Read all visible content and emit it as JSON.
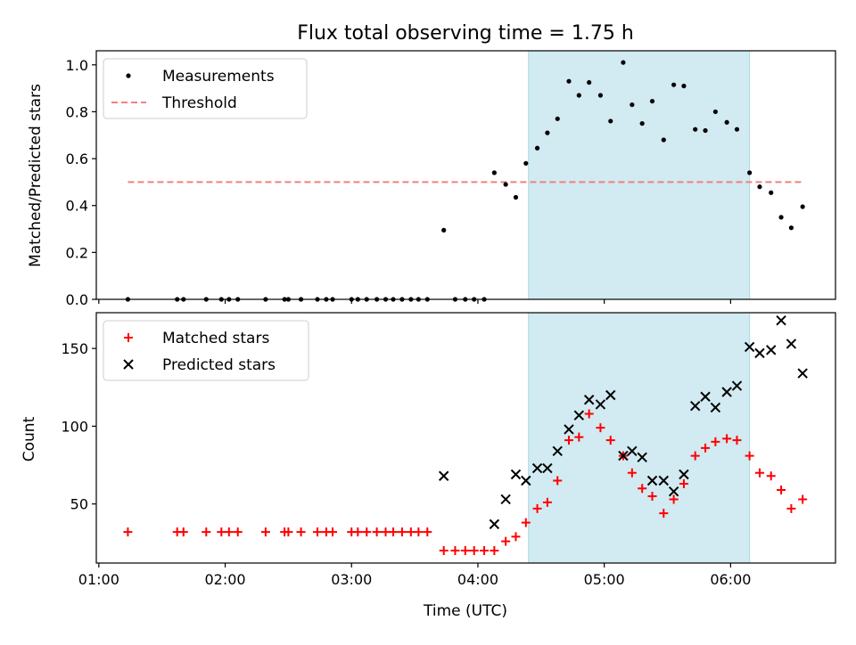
{
  "chart_data": [
    {
      "type": "scatter",
      "title": "Flux total observing time = 1.75 h",
      "xlabel": "",
      "ylabel": "Matched/Predicted stars",
      "xlim": [
        0.98,
        6.83
      ],
      "ylim": [
        0.0,
        1.06
      ],
      "x_ticks": [
        1,
        2,
        3,
        4,
        5,
        6
      ],
      "y_ticks": [
        0.0,
        0.2,
        0.4,
        0.6,
        0.8,
        1.0
      ],
      "y_tick_labels": [
        "0.0",
        "0.2",
        "0.4",
        "0.6",
        "0.8",
        "1.0"
      ],
      "shaded_x_range": [
        4.4,
        6.15
      ],
      "shade_color": "#add8e6",
      "threshold": {
        "name": "Threshold",
        "value": 0.5,
        "x_range": [
          1.23,
          6.57
        ],
        "color": "#f08080"
      },
      "legend": {
        "placement": "top-left",
        "entries": [
          "Measurements",
          "Threshold"
        ]
      },
      "series": [
        {
          "name": "Measurements",
          "marker": "dot",
          "color": "#000000",
          "x": [
            1.23,
            1.62,
            1.67,
            1.85,
            1.97,
            2.03,
            2.1,
            2.32,
            2.47,
            2.5,
            2.6,
            2.73,
            2.8,
            2.85,
            3.0,
            3.05,
            3.12,
            3.2,
            3.27,
            3.33,
            3.4,
            3.47,
            3.53,
            3.6,
            3.73,
            3.82,
            3.9,
            3.97,
            4.05,
            4.13,
            4.22,
            4.3,
            4.38,
            4.47,
            4.55,
            4.63,
            4.72,
            4.8,
            4.88,
            4.97,
            5.05,
            5.15,
            5.22,
            5.3,
            5.38,
            5.47,
            5.55,
            5.63,
            5.72,
            5.8,
            5.88,
            5.97,
            6.05,
            6.15,
            6.23,
            6.32,
            6.4,
            6.48,
            6.57
          ],
          "y": [
            0.0,
            0.0,
            0.0,
            0.0,
            0.0,
            0.0,
            0.0,
            0.0,
            0.0,
            0.0,
            0.0,
            0.0,
            0.0,
            0.0,
            0.0,
            0.0,
            0.0,
            0.0,
            0.0,
            0.0,
            0.0,
            0.0,
            0.0,
            0.0,
            0.295,
            0.0,
            0.0,
            0.0,
            0.0,
            0.54,
            0.49,
            0.435,
            0.58,
            0.645,
            0.71,
            0.77,
            0.93,
            0.87,
            0.925,
            0.87,
            0.76,
            1.01,
            0.83,
            0.75,
            0.845,
            0.68,
            0.915,
            0.91,
            0.725,
            0.72,
            0.8,
            0.755,
            0.725,
            0.54,
            0.48,
            0.455,
            0.35,
            0.305,
            0.395
          ]
        }
      ]
    },
    {
      "type": "scatter",
      "title": "",
      "xlabel": "Time (UTC)",
      "ylabel": "Count",
      "xlim": [
        0.98,
        6.83
      ],
      "ylim": [
        12,
        173
      ],
      "x_ticks": [
        1,
        2,
        3,
        4,
        5,
        6
      ],
      "x_tick_labels": [
        "01:00",
        "02:00",
        "03:00",
        "04:00",
        "05:00",
        "06:00"
      ],
      "y_ticks": [
        50,
        100,
        150
      ],
      "y_tick_labels": [
        "50",
        "100",
        "150"
      ],
      "shaded_x_range": [
        4.4,
        6.15
      ],
      "shade_color": "#add8e6",
      "legend": {
        "placement": "top-left",
        "entries": [
          "Matched stars",
          "Predicted stars"
        ]
      },
      "series": [
        {
          "name": "Matched stars",
          "marker": "plus",
          "color": "#ff0000",
          "x": [
            1.23,
            1.62,
            1.67,
            1.85,
            1.97,
            2.03,
            2.1,
            2.32,
            2.47,
            2.5,
            2.6,
            2.73,
            2.8,
            2.85,
            3.0,
            3.05,
            3.12,
            3.2,
            3.27,
            3.33,
            3.4,
            3.47,
            3.53,
            3.6,
            3.73,
            3.82,
            3.9,
            3.97,
            4.05,
            4.13,
            4.22,
            4.3,
            4.38,
            4.47,
            4.55,
            4.63,
            4.72,
            4.8,
            4.88,
            4.97,
            5.05,
            5.15,
            5.22,
            5.3,
            5.38,
            5.47,
            5.55,
            5.63,
            5.72,
            5.8,
            5.88,
            5.97,
            6.05,
            6.15,
            6.23,
            6.32,
            6.4,
            6.48,
            6.57
          ],
          "y": [
            32,
            32,
            32,
            32,
            32,
            32,
            32,
            32,
            32,
            32,
            32,
            32,
            32,
            32,
            32,
            32,
            32,
            32,
            32,
            32,
            32,
            32,
            32,
            32,
            20,
            20,
            20,
            20,
            20,
            20,
            26,
            29,
            38,
            47,
            51,
            65,
            91,
            93,
            108,
            99,
            91,
            81,
            70,
            60,
            55,
            44,
            53,
            63,
            81,
            86,
            90,
            92,
            91,
            81,
            70,
            68,
            59,
            47,
            53
          ]
        },
        {
          "name": "Predicted stars",
          "marker": "x",
          "color": "#000000",
          "x": [
            3.73,
            4.13,
            4.22,
            4.3,
            4.38,
            4.47,
            4.55,
            4.63,
            4.72,
            4.8,
            4.88,
            4.97,
            5.05,
            5.15,
            5.22,
            5.3,
            5.38,
            5.47,
            5.55,
            5.63,
            5.72,
            5.8,
            5.88,
            5.97,
            6.05,
            6.15,
            6.23,
            6.32,
            6.4,
            6.48,
            6.57
          ],
          "y": [
            68,
            37,
            53,
            69,
            65,
            73,
            73,
            84,
            98,
            107,
            117,
            114,
            120,
            81,
            84,
            80,
            65,
            65,
            58,
            69,
            113,
            119,
            112,
            122,
            126,
            151,
            147,
            149,
            168,
            153,
            134
          ]
        }
      ]
    }
  ]
}
